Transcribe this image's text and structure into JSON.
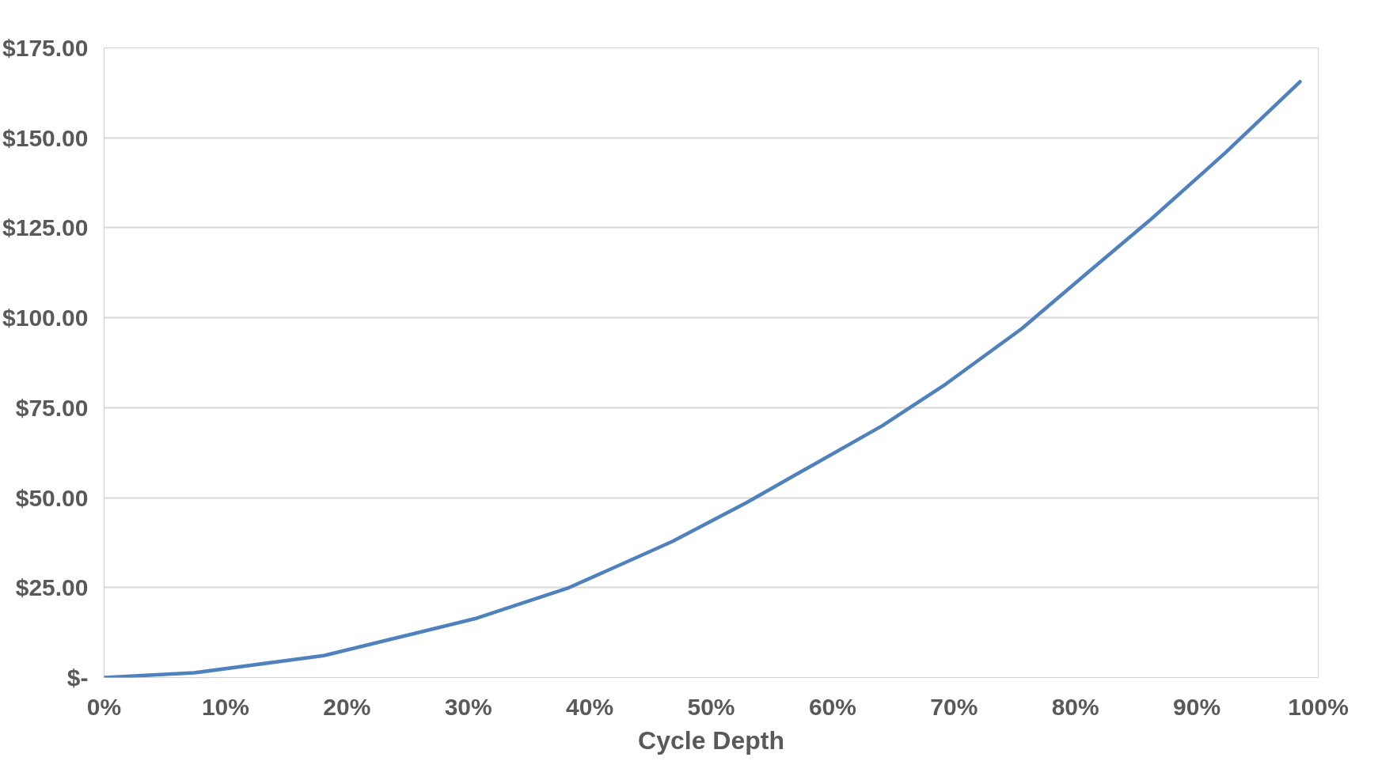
{
  "chart_data": {
    "type": "line",
    "xlabel": "Cycle Depth",
    "series": [
      {
        "color": "#4f81bd",
        "x": [
          0,
          7.4,
          18.1,
          30.7,
          38.3,
          46.8,
          52.9,
          64.1,
          69.3,
          75.6,
          81.0,
          86.1,
          92.4,
          98.5
        ],
        "values": [
          0,
          1.3,
          6.1,
          16.5,
          25,
          37.8,
          48.6,
          70,
          81.5,
          97,
          112.5,
          127,
          146,
          165.6
        ]
      }
    ],
    "xlim": [
      0,
      100
    ],
    "xticks": [
      {
        "value": 0,
        "label": "0%"
      },
      {
        "value": 10,
        "label": "10%"
      },
      {
        "value": 20,
        "label": "20%"
      },
      {
        "value": 30,
        "label": "30%"
      },
      {
        "value": 40,
        "label": "40%"
      },
      {
        "value": 50,
        "label": "50%"
      },
      {
        "value": 60,
        "label": "60%"
      },
      {
        "value": 70,
        "label": "70%"
      },
      {
        "value": 80,
        "label": "80%"
      },
      {
        "value": 90,
        "label": "90%"
      },
      {
        "value": 100,
        "label": "100%"
      }
    ],
    "ylim": [
      0,
      175
    ],
    "yticks": [
      {
        "value": 0,
        "label": "$-"
      },
      {
        "value": 25,
        "label": "$25.00"
      },
      {
        "value": 50,
        "label": "$50.00"
      },
      {
        "value": 75,
        "label": "$75.00"
      },
      {
        "value": 100,
        "label": "$100.00"
      },
      {
        "value": 125,
        "label": "$125.00"
      },
      {
        "value": 150,
        "label": "$150.00"
      },
      {
        "value": 175,
        "label": "$175.00"
      }
    ],
    "grid": "y",
    "marker": "none",
    "line_style": "solid"
  }
}
